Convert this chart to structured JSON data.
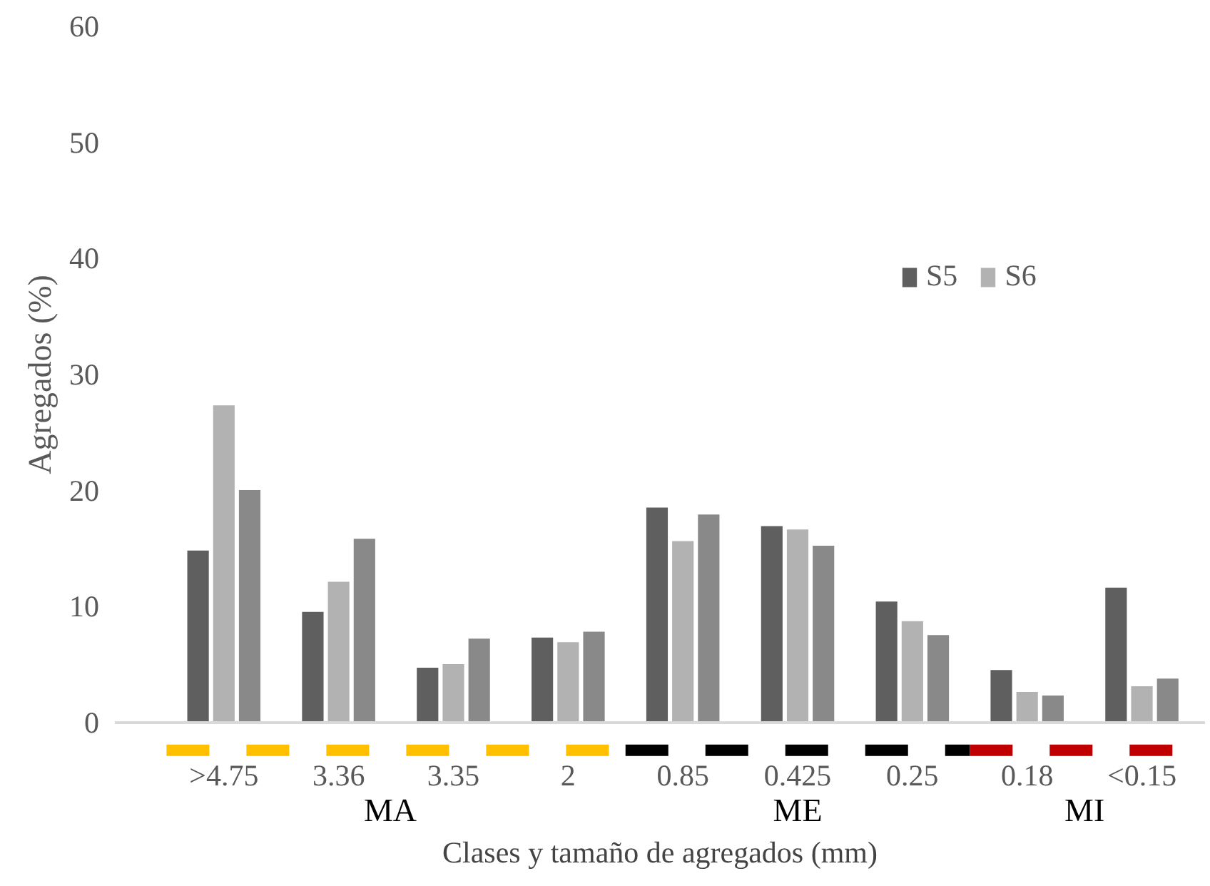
{
  "chart_data": {
    "type": "bar",
    "xlabel": "Clases y tamaño de agregados (mm)",
    "ylabel": "Agregados (%)",
    "categories": [
      ">4.75",
      "3.36",
      "3.35",
      "2",
      "0.85",
      "0.425",
      "0.25",
      "0.18",
      "<0.15"
    ],
    "series": [
      {
        "name": "S5",
        "color": "#5f5f5f",
        "values": [
          14.9,
          9.6,
          4.8,
          7.4,
          18.6,
          17.0,
          10.5,
          4.6,
          11.7
        ]
      },
      {
        "name": "S6",
        "color": "#b2b2b2",
        "values": [
          27.4,
          12.2,
          5.1,
          7.0,
          15.7,
          16.7,
          8.8,
          2.7,
          3.2
        ]
      },
      {
        "color": "#898989",
        "values": [
          20.1,
          15.9,
          7.3,
          7.9,
          18.0,
          15.3,
          7.6,
          2.4,
          3.85
        ]
      }
    ],
    "ylim": [
      0,
      60
    ],
    "yticks": [
      0,
      10,
      20,
      30,
      40,
      50,
      60
    ],
    "grid": false,
    "legend": "top right",
    "annotations": [
      "MA",
      "ME",
      "MI"
    ]
  }
}
